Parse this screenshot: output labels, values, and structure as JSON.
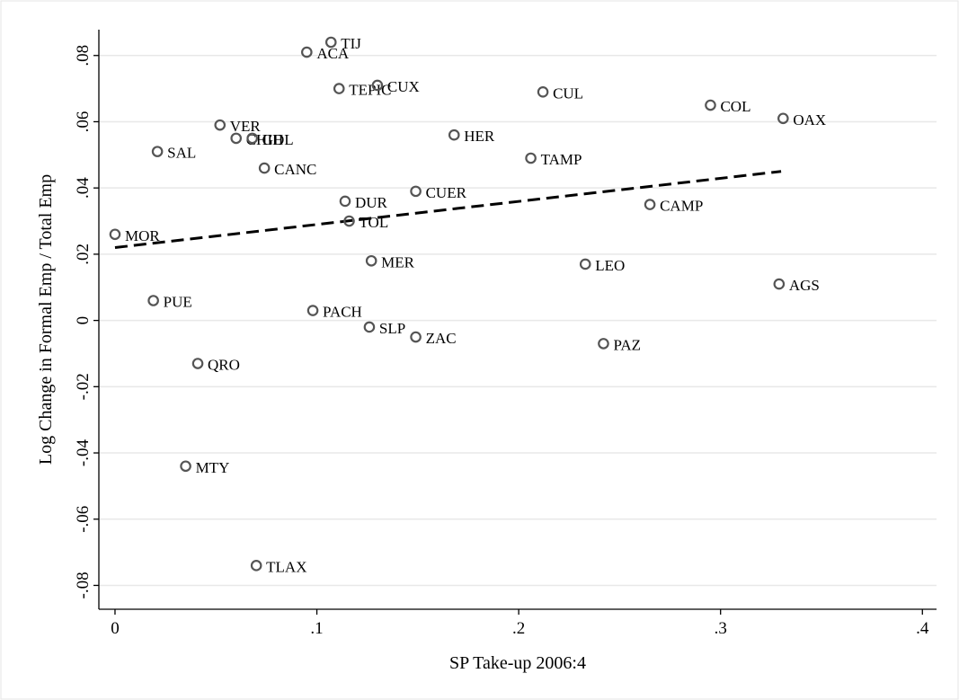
{
  "chart_data": {
    "type": "scatter",
    "xlabel": "SP Take-up 2006:4",
    "ylabel": "Log Change in Formal Emp / Total Emp",
    "xlim": [
      0,
      0.4
    ],
    "ylim": [
      -0.08,
      0.08
    ],
    "x_ticks": [
      0,
      0.1,
      0.2,
      0.3,
      0.4
    ],
    "x_tick_labels": [
      "0",
      ".1",
      ".2",
      ".3",
      ".4"
    ],
    "y_ticks": [
      -0.08,
      -0.06,
      -0.04,
      -0.02,
      0,
      0.02,
      0.04,
      0.06,
      0.08
    ],
    "y_tick_labels": [
      "-.08",
      "-.06",
      "-.04",
      "-.02",
      "0",
      ".02",
      ".04",
      ".06",
      ".08"
    ],
    "grid": "horizontal",
    "points": [
      {
        "label": "TIJ",
        "x": 0.107,
        "y": 0.084
      },
      {
        "label": "ACA",
        "x": 0.095,
        "y": 0.081
      },
      {
        "label": "TEPIC",
        "x": 0.111,
        "y": 0.07
      },
      {
        "label": "CUX",
        "x": 0.13,
        "y": 0.071
      },
      {
        "label": "CUL",
        "x": 0.212,
        "y": 0.069
      },
      {
        "label": "COL",
        "x": 0.295,
        "y": 0.065
      },
      {
        "label": "OAX",
        "x": 0.331,
        "y": 0.061
      },
      {
        "label": "VER",
        "x": 0.052,
        "y": 0.059
      },
      {
        "label": "CHIH",
        "x": 0.06,
        "y": 0.055
      },
      {
        "label": "GDL",
        "x": 0.068,
        "y": 0.055
      },
      {
        "label": "HER",
        "x": 0.168,
        "y": 0.056
      },
      {
        "label": "SAL",
        "x": 0.021,
        "y": 0.051
      },
      {
        "label": "TAMP",
        "x": 0.206,
        "y": 0.049
      },
      {
        "label": "CANC",
        "x": 0.074,
        "y": 0.046
      },
      {
        "label": "CUER",
        "x": 0.149,
        "y": 0.039
      },
      {
        "label": "DUR",
        "x": 0.114,
        "y": 0.036
      },
      {
        "label": "CAMP",
        "x": 0.265,
        "y": 0.035
      },
      {
        "label": "TOL",
        "x": 0.116,
        "y": 0.03
      },
      {
        "label": "MOR",
        "x": 0.0,
        "y": 0.026
      },
      {
        "label": "MER",
        "x": 0.127,
        "y": 0.018
      },
      {
        "label": "LEO",
        "x": 0.233,
        "y": 0.017
      },
      {
        "label": "AGS",
        "x": 0.329,
        "y": 0.011
      },
      {
        "label": "PUE",
        "x": 0.019,
        "y": 0.006
      },
      {
        "label": "PACH",
        "x": 0.098,
        "y": 0.003
      },
      {
        "label": "SLP",
        "x": 0.126,
        "y": -0.002
      },
      {
        "label": "ZAC",
        "x": 0.149,
        "y": -0.005
      },
      {
        "label": "PAZ",
        "x": 0.242,
        "y": -0.007
      },
      {
        "label": "QRO",
        "x": 0.041,
        "y": -0.013
      },
      {
        "label": "MTY",
        "x": 0.035,
        "y": -0.044
      },
      {
        "label": "TLAX",
        "x": 0.07,
        "y": -0.074
      }
    ],
    "fit_line": {
      "x": [
        0,
        0.33
      ],
      "y": [
        0.022,
        0.045
      ],
      "style": "dashed"
    }
  }
}
